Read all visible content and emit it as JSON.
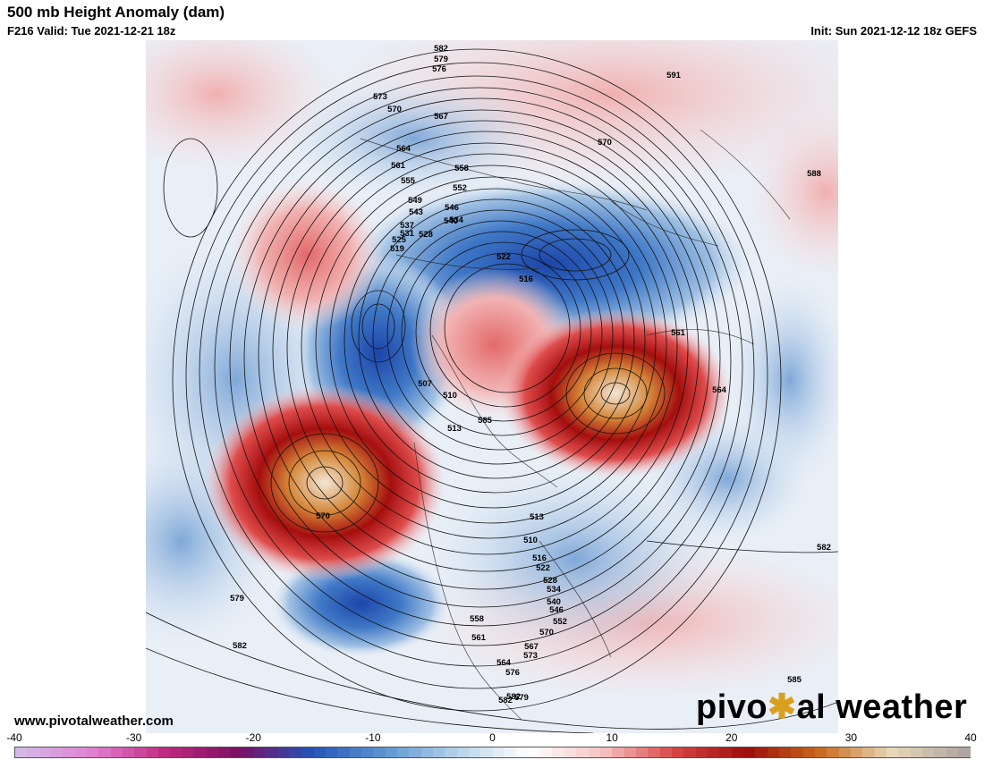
{
  "header": {
    "title": "500 mb Height Anomaly (dam)",
    "valid": "F216 Valid: Tue 2021-12-21 18z",
    "init": "Init: Sun 2021-12-12 18z GEFS"
  },
  "footer": {
    "website": "www.pivotalweather.com",
    "brand_part1": "pivo",
    "brand_dot": "✱",
    "brand_part2": "al weather"
  },
  "colorbar": {
    "min": -40,
    "max": 40,
    "ticks": [
      "-40",
      "-30",
      "-20",
      "-10",
      "0",
      "10",
      "20",
      "30",
      "40"
    ],
    "stops": [
      "#d5b8e6",
      "#e07fd0",
      "#c0287f",
      "#7a1062",
      "#2552b8",
      "#5c95d0",
      "#b6d0ea",
      "#ffffff",
      "#f6c4c4",
      "#d84646",
      "#9b0d0d",
      "#c8681c",
      "#e8d8b8",
      "#b0a5a2"
    ]
  },
  "anomaly_features": [
    {
      "name": "positive-anomaly-northeast-pacific",
      "sign": "+"
    },
    {
      "name": "positive-anomaly-north-atlantic",
      "sign": "+"
    },
    {
      "name": "positive-anomaly-arctic",
      "sign": "+"
    },
    {
      "name": "positive-anomaly-east-asia",
      "sign": "+"
    },
    {
      "name": "positive-anomaly-europe",
      "sign": "+"
    },
    {
      "name": "negative-anomaly-central-north-america",
      "sign": "-"
    },
    {
      "name": "negative-anomaly-siberia",
      "sign": "-"
    },
    {
      "name": "negative-anomaly-north-pacific",
      "sign": "-"
    },
    {
      "name": "negative-anomaly-eastern-pacific",
      "sign": "-"
    },
    {
      "name": "negative-anomaly-north-africa",
      "sign": "-"
    }
  ],
  "contour_labels": [
    "582",
    "579",
    "576",
    "573",
    "570",
    "567",
    "564",
    "561",
    "558",
    "555",
    "552",
    "549",
    "546",
    "543",
    "540",
    "537",
    "534",
    "531",
    "528",
    "525",
    "522",
    "519",
    "516",
    "513",
    "510",
    "507",
    "561",
    "564",
    "570",
    "591",
    "588",
    "582",
    "585",
    "582",
    "579",
    "570",
    "582",
    "585",
    "513",
    "510",
    "516",
    "522",
    "528",
    "534",
    "540",
    "546",
    "552",
    "558",
    "561",
    "564",
    "567",
    "570",
    "573",
    "576",
    "579",
    "582"
  ]
}
